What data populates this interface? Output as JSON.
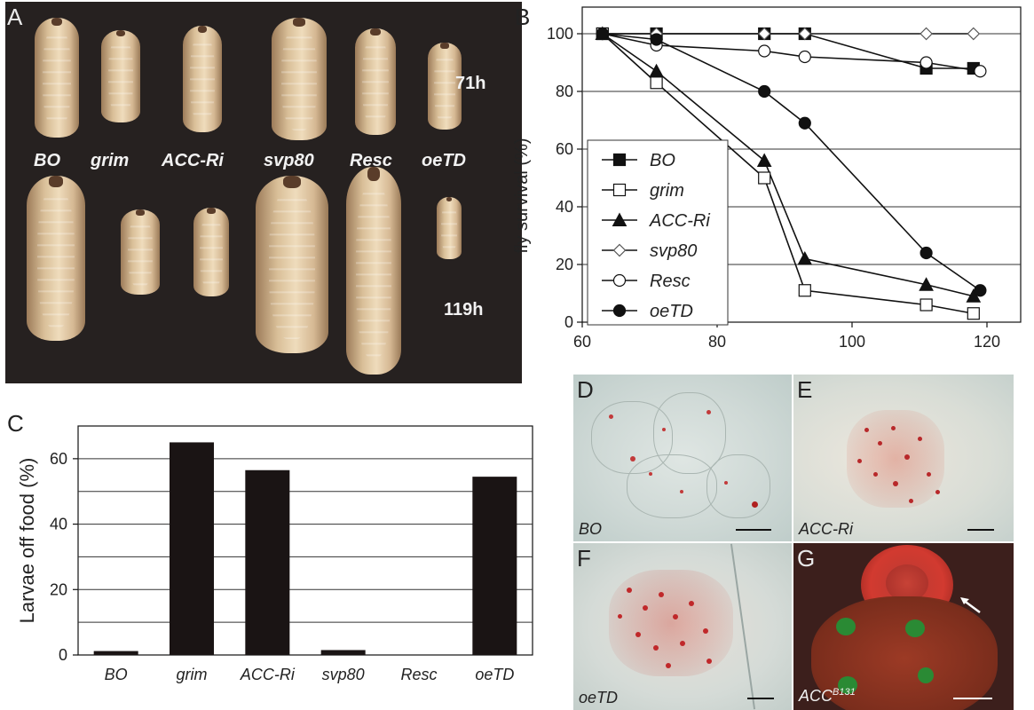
{
  "panel_labels": {
    "a": "A",
    "b": "B",
    "c": "C",
    "d": "D",
    "e": "E",
    "f": "F",
    "g": "G"
  },
  "panelA": {
    "genotypes": [
      "BO",
      "grim",
      "ACC-Ri",
      "svp80",
      "Resc",
      "oeTD"
    ],
    "time_top": "71h",
    "time_bottom": "119h"
  },
  "micrographs": {
    "d_label": "BO",
    "e_label": "ACC-Ri",
    "f_label": "oeTD",
    "g_label_main": "ACC",
    "g_label_sup": "B131",
    "g_arrow": "arrow-icon"
  },
  "chart_data": [
    {
      "panel": "B",
      "type": "line",
      "ylabel": "fly survival (%)",
      "xlabel": "",
      "xlim": [
        60,
        125
      ],
      "ylim": [
        0,
        100
      ],
      "xticks": [
        60,
        80,
        100,
        120
      ],
      "yticks": [
        0,
        20,
        40,
        60,
        80,
        100
      ],
      "grid": "horizontal",
      "legend": "left",
      "series": [
        {
          "name": "BO",
          "marker": "square-filled",
          "x": [
            63,
            71,
            87,
            93,
            111,
            118
          ],
          "y": [
            100,
            100,
            100,
            100,
            88,
            88
          ]
        },
        {
          "name": "grim",
          "marker": "square-open",
          "x": [
            63,
            71,
            87,
            93,
            111,
            118
          ],
          "y": [
            100,
            83,
            50,
            11,
            6,
            3
          ]
        },
        {
          "name": "ACC-Ri",
          "marker": "triangle-filled",
          "x": [
            63,
            71,
            87,
            93,
            111,
            118
          ],
          "y": [
            100,
            87,
            56,
            22,
            13,
            9
          ]
        },
        {
          "name": "svp80",
          "marker": "diamond-open",
          "x": [
            63,
            71,
            87,
            93,
            111,
            118
          ],
          "y": [
            100,
            100,
            100,
            100,
            100,
            100
          ]
        },
        {
          "name": "Resc",
          "marker": "circle-open",
          "x": [
            63,
            71,
            87,
            93,
            111,
            119
          ],
          "y": [
            100,
            96,
            94,
            92,
            90,
            87
          ]
        },
        {
          "name": "oeTD",
          "marker": "circle-filled",
          "x": [
            63,
            71,
            87,
            93,
            111,
            119
          ],
          "y": [
            100,
            98,
            80,
            69,
            24,
            11
          ]
        }
      ]
    },
    {
      "panel": "C",
      "type": "bar",
      "ylabel": "Larvae off food (%)",
      "xlabel": "",
      "ylim": [
        0,
        70
      ],
      "yticks": [
        0,
        20,
        40,
        60
      ],
      "grid": "horizontal",
      "categories": [
        "BO",
        "grim",
        "ACC-Ri",
        "svp80",
        "Resc",
        "oeTD"
      ],
      "values": [
        1.2,
        65,
        56.5,
        1.5,
        0,
        54.5
      ],
      "bar_color": "#1a1414"
    }
  ]
}
